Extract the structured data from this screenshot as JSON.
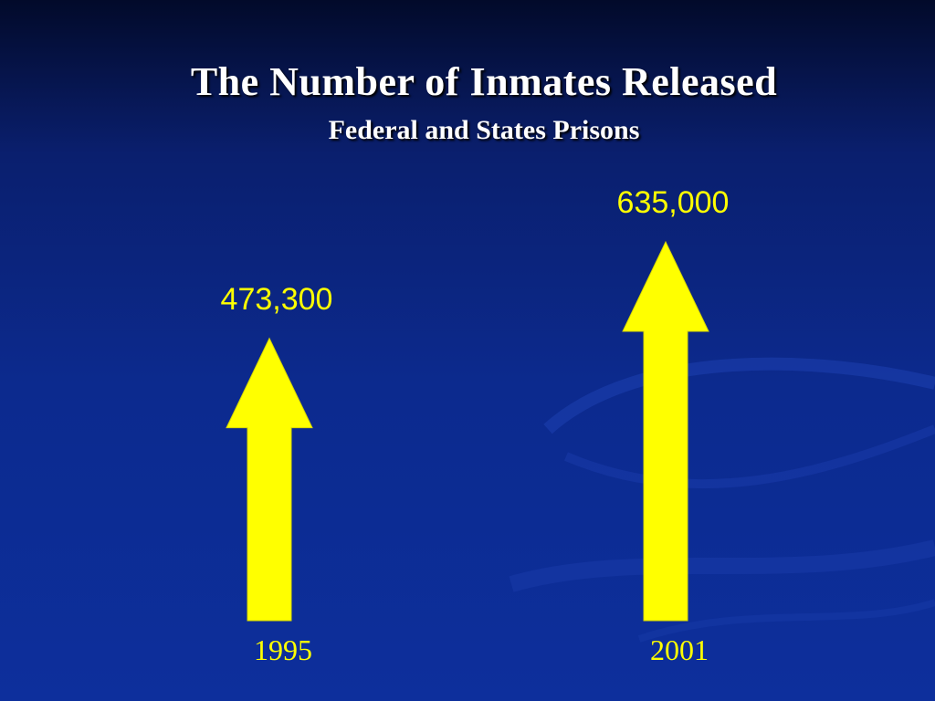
{
  "title": "The Number of Inmates Released",
  "subtitle": "Federal and States Prisons",
  "colors": {
    "arrow": "#ffff00",
    "value_label": "#ffff00",
    "category_label": "#ffff00",
    "title": "#ffffff"
  },
  "chart_data": {
    "type": "bar",
    "categories": [
      "1995",
      "2001"
    ],
    "values": [
      473300,
      635000
    ],
    "value_labels": [
      "473,300",
      "635,000"
    ],
    "title": "The Number of Inmates Released",
    "subtitle": "Federal and States Prisons",
    "xlabel": "",
    "ylabel": "",
    "grid": false,
    "legend": "none"
  }
}
